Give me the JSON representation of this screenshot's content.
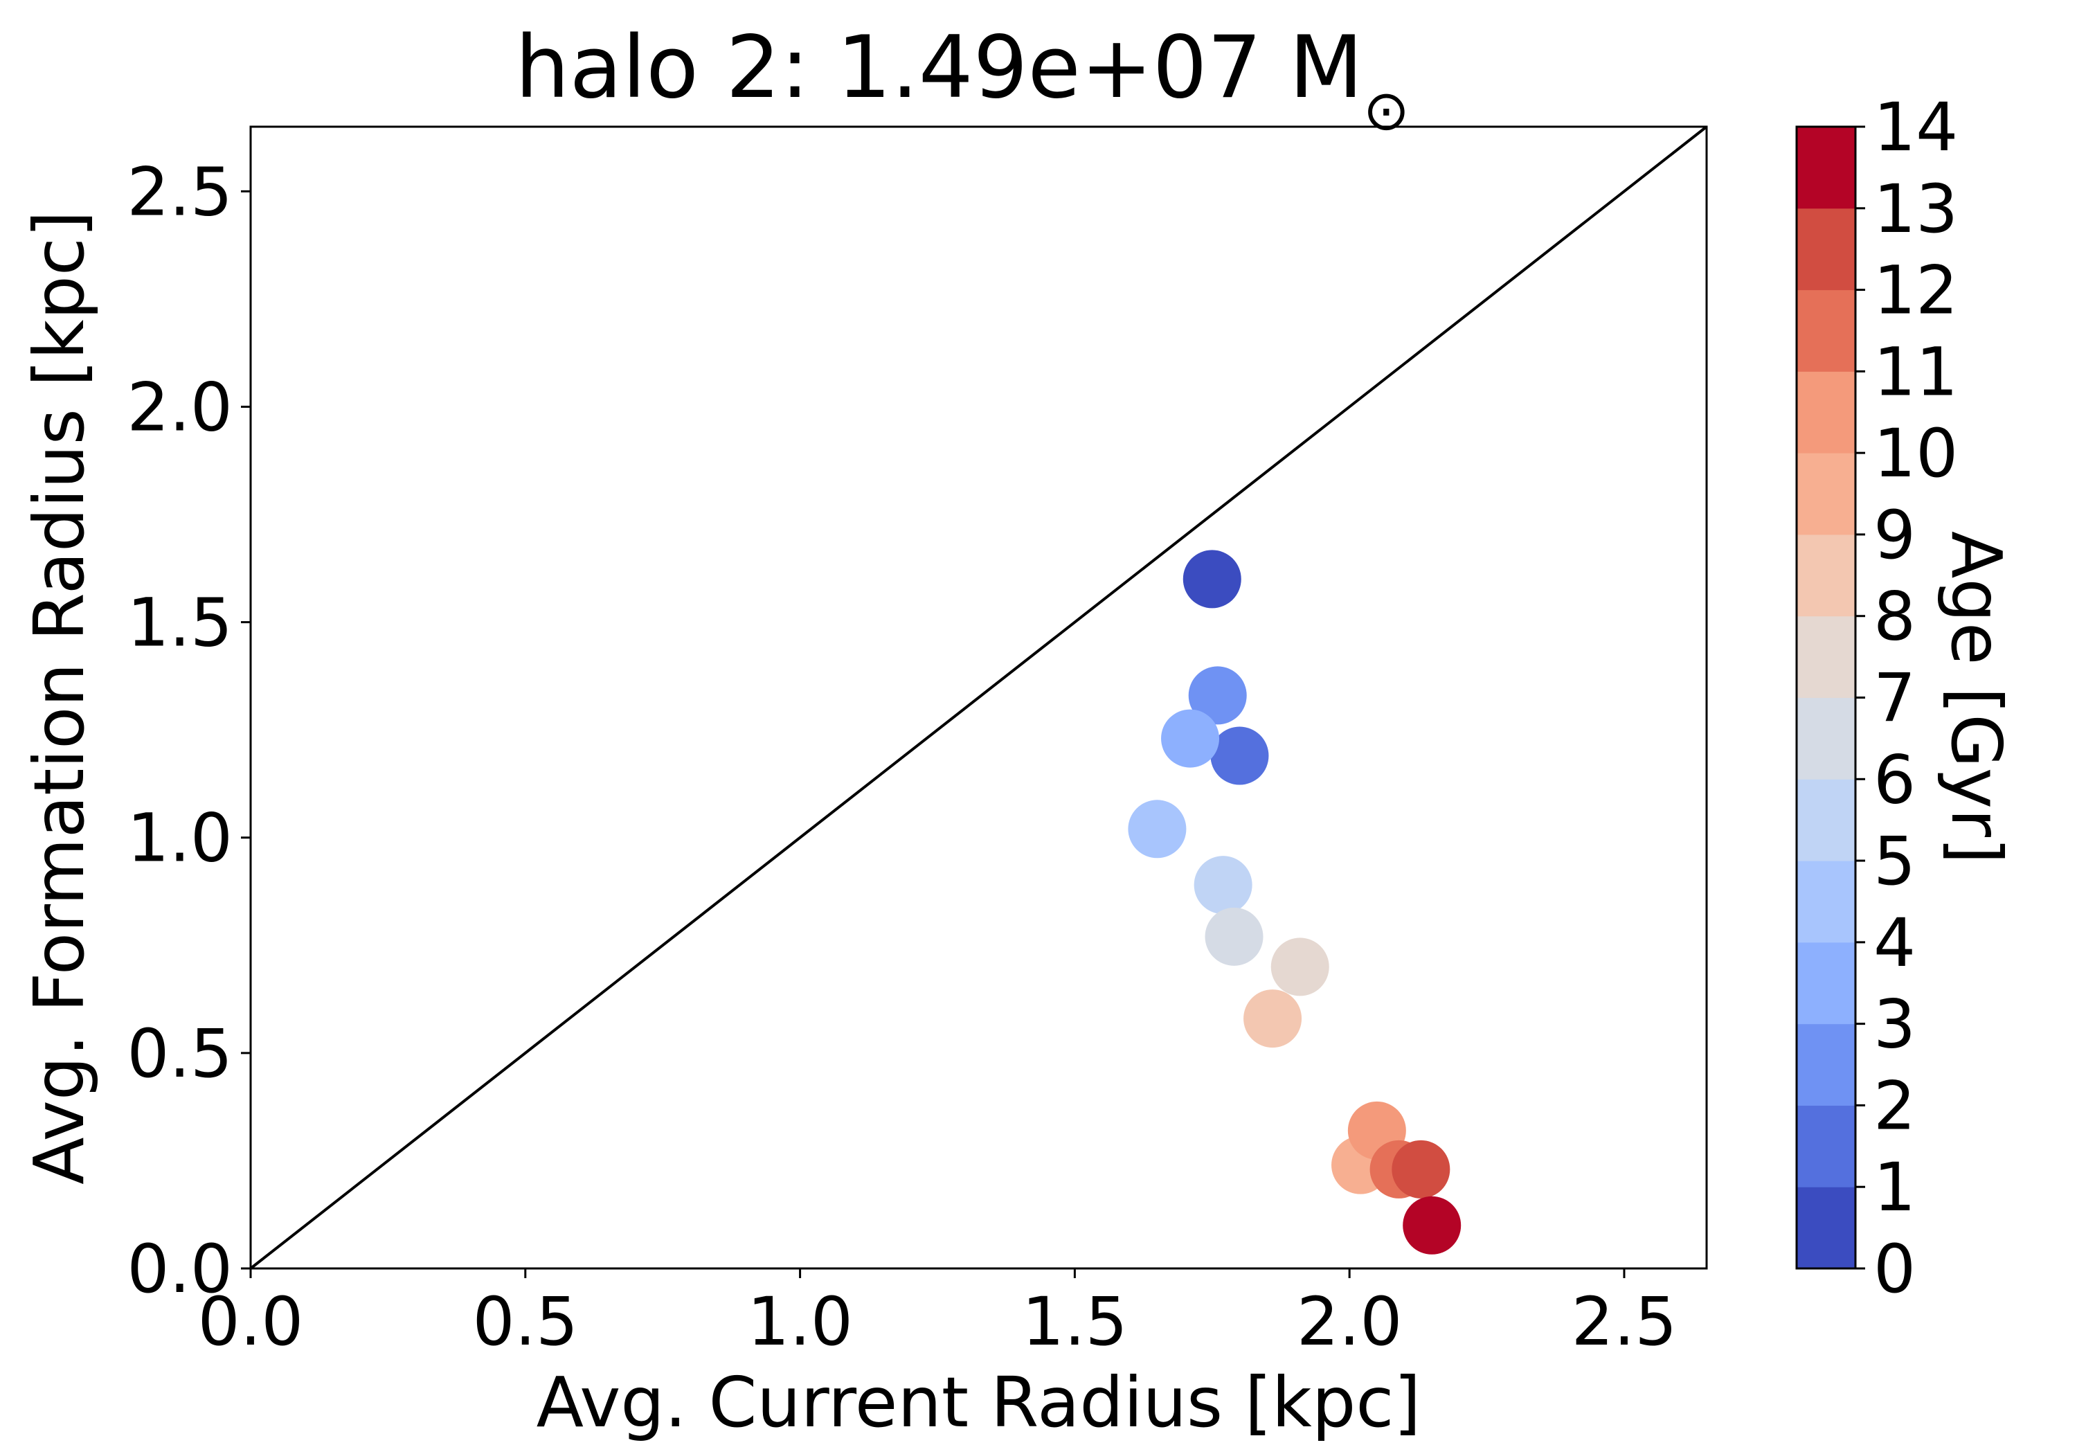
{
  "chart_data": {
    "type": "scatter",
    "title": "halo 2: 1.49e+07 M",
    "title_symbol": "⊙",
    "xlabel": "Avg. Current Radius [kpc]",
    "ylabel": "Avg. Formation Radius [kpc]",
    "xlim": [
      0,
      2.65
    ],
    "ylim": [
      0,
      2.65
    ],
    "xticks": [
      "0.0",
      "0.5",
      "1.0",
      "1.5",
      "2.0",
      "2.5"
    ],
    "yticks": [
      "0.0",
      "0.5",
      "1.0",
      "1.5",
      "2.0",
      "2.5"
    ],
    "grid": false,
    "reference_line": {
      "label": "",
      "x": [
        0,
        2.65
      ],
      "y": [
        0,
        2.65
      ]
    },
    "colorbar": {
      "label": "Age [Gyr]",
      "ticks": [
        "0",
        "1",
        "2",
        "3",
        "4",
        "5",
        "6",
        "7",
        "8",
        "9",
        "10",
        "11",
        "12",
        "13",
        "14"
      ],
      "colors": [
        "#3b4cc0",
        "#5470de",
        "#6f92f3",
        "#8db0fe",
        "#a8c5fd",
        "#c0d4f5",
        "#d5dbe5",
        "#e5d8d1",
        "#f3c7b1",
        "#f7af91",
        "#f49a7b",
        "#e57058",
        "#d14d41",
        "#b40426"
      ]
    },
    "points": [
      {
        "x": 1.75,
        "y": 1.6,
        "age": 0.5,
        "color": "#3b4cc0"
      },
      {
        "x": 1.8,
        "y": 1.19,
        "age": 1.5,
        "color": "#5470de"
      },
      {
        "x": 1.76,
        "y": 1.33,
        "age": 2.5,
        "color": "#6f92f3"
      },
      {
        "x": 1.71,
        "y": 1.23,
        "age": 3.5,
        "color": "#8db0fe"
      },
      {
        "x": 1.65,
        "y": 1.02,
        "age": 4.5,
        "color": "#a8c5fd"
      },
      {
        "x": 1.77,
        "y": 0.89,
        "age": 5.5,
        "color": "#c0d4f5"
      },
      {
        "x": 1.79,
        "y": 0.77,
        "age": 6.5,
        "color": "#d5dbe5"
      },
      {
        "x": 1.91,
        "y": 0.7,
        "age": 7.5,
        "color": "#e5d8d1"
      },
      {
        "x": 1.86,
        "y": 0.58,
        "age": 8.5,
        "color": "#f3c7b1"
      },
      {
        "x": 2.02,
        "y": 0.24,
        "age": 9.5,
        "color": "#f7af91"
      },
      {
        "x": 2.05,
        "y": 0.32,
        "age": 10.5,
        "color": "#f49a7b"
      },
      {
        "x": 2.09,
        "y": 0.23,
        "age": 11.5,
        "color": "#e57058"
      },
      {
        "x": 2.13,
        "y": 0.23,
        "age": 12.5,
        "color": "#d14d41"
      },
      {
        "x": 2.15,
        "y": 0.1,
        "age": 13.5,
        "color": "#b40426"
      }
    ]
  }
}
